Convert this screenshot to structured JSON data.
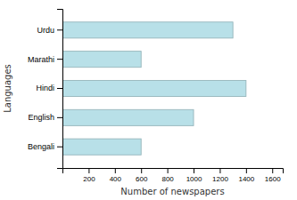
{
  "chart_data": {
    "type": "bar",
    "orientation": "horizontal",
    "categories": [
      "Urdu",
      "Marathi",
      "Hindi",
      "English",
      "Bengali"
    ],
    "values": [
      1300,
      600,
      1400,
      1000,
      600
    ],
    "color": "#b8e0e8",
    "xlabel": "Number of newspapers",
    "ylabel": "Languages",
    "xlim": [
      0,
      1680
    ],
    "xticks": [
      200,
      400,
      600,
      800,
      1000,
      1200,
      1400,
      1600
    ],
    "grid": false
  }
}
